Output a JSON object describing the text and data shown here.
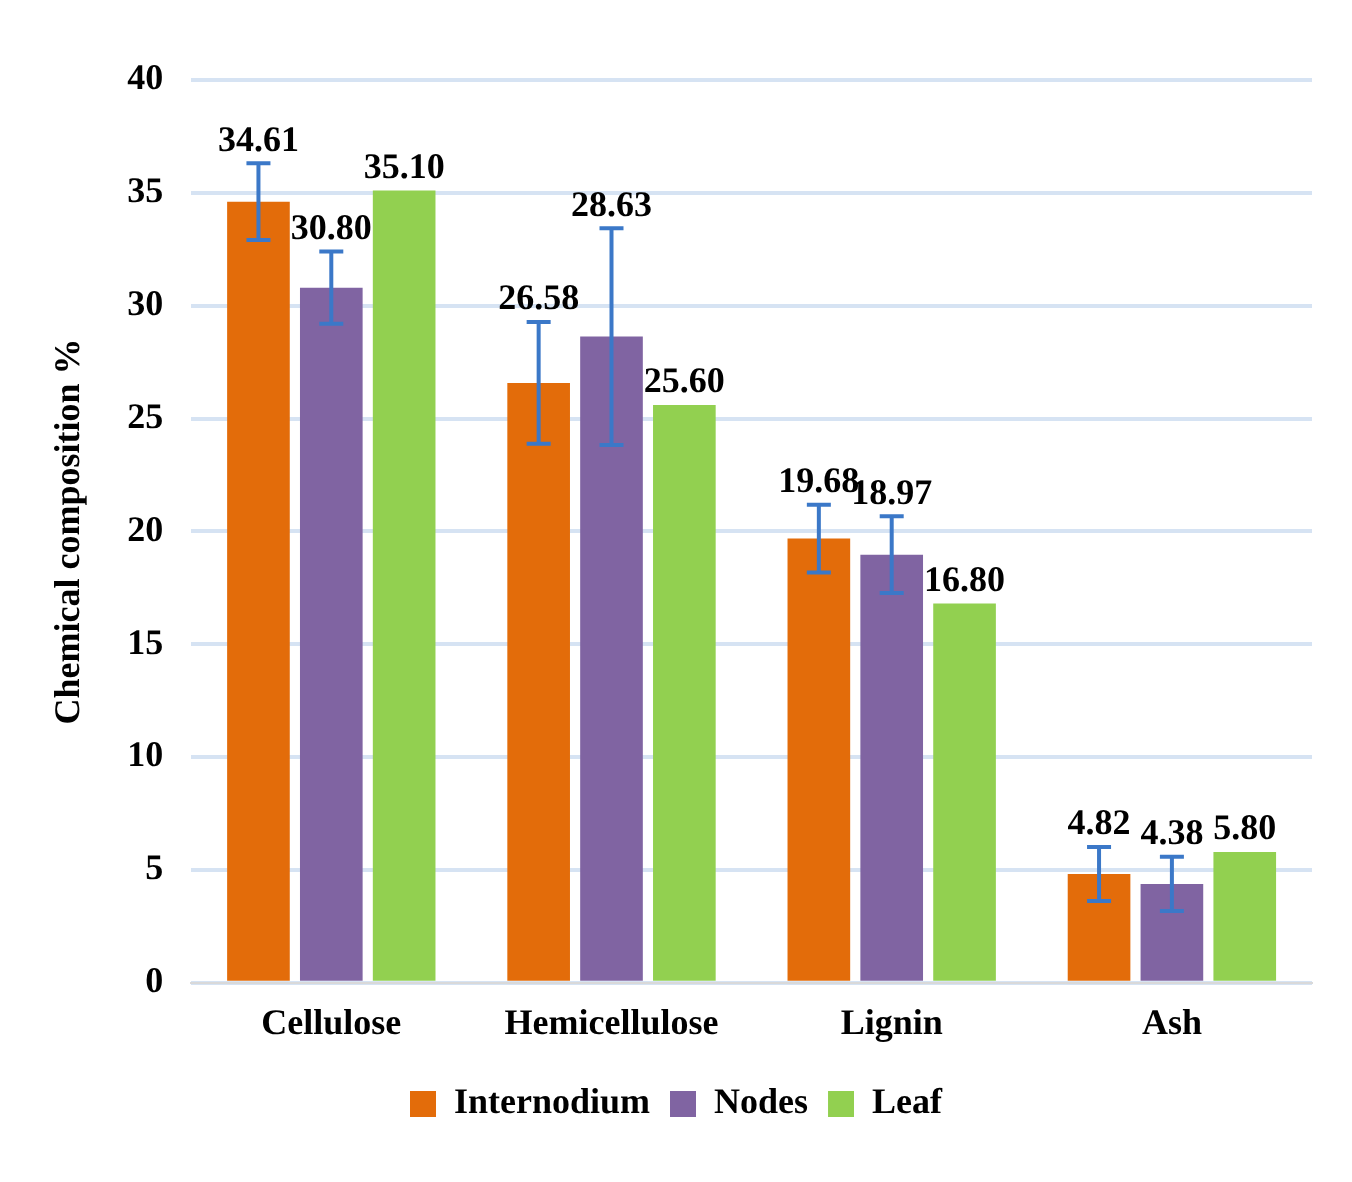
{
  "chart_data": {
    "type": "bar",
    "ylabel": "Chemical composition %",
    "categories": [
      "Cellulose",
      "Hemicellulose",
      "Lignin",
      "Ash"
    ],
    "series": [
      {
        "name": "Internodium",
        "color": "#e36c0a",
        "values": [
          34.61,
          26.58,
          19.68,
          4.82
        ],
        "value_labels": [
          "34.61",
          "26.58",
          "19.68",
          "4.82"
        ],
        "errors": [
          1.7,
          2.7,
          1.5,
          1.2
        ]
      },
      {
        "name": "Nodes",
        "color": "#8064a2",
        "values": [
          30.8,
          28.63,
          18.97,
          4.38
        ],
        "value_labels": [
          "30.80",
          "28.63",
          "18.97",
          "4.38"
        ],
        "errors": [
          1.6,
          4.8,
          1.7,
          1.2
        ]
      },
      {
        "name": "Leaf",
        "color": "#92d050",
        "values": [
          35.1,
          25.6,
          16.8,
          5.8
        ],
        "value_labels": [
          "35.10",
          "25.60",
          "16.80",
          "5.80"
        ]
      }
    ],
    "ylim": [
      0,
      40
    ],
    "yticks": [
      0,
      5,
      10,
      15,
      20,
      25,
      30,
      35,
      40
    ],
    "grid": "y",
    "legend": "bottom"
  }
}
